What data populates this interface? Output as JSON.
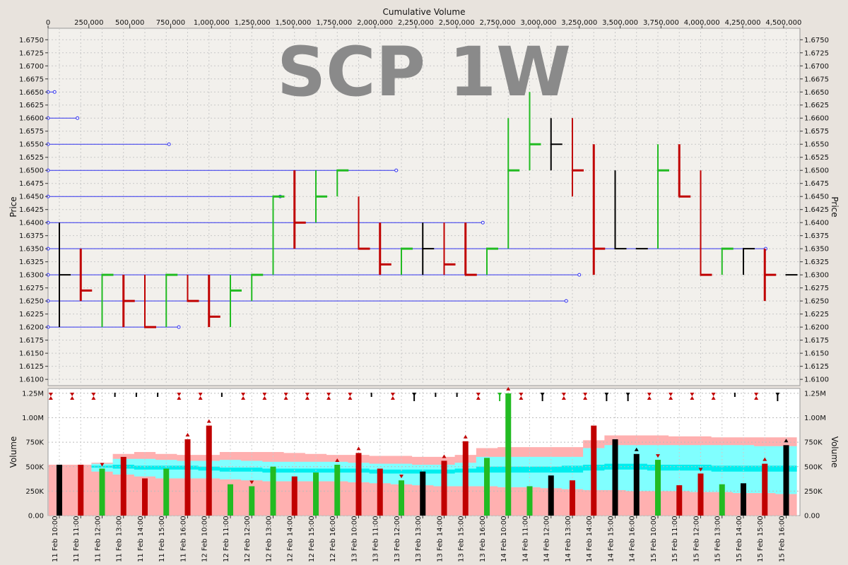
{
  "chart_data": {
    "type": "bar",
    "title": "SCP 1W",
    "top_axis": {
      "label": "Cumulative Volume",
      "range": [
        0,
        4600000
      ],
      "ticks": [
        "0",
        "250,000",
        "500,000",
        "750,000",
        "1,000,000",
        "1,250,000",
        "1,500,000",
        "1,750,000",
        "2,000,000",
        "2,250,000",
        "2,500,000",
        "2,750,000",
        "3,000,000",
        "3,250,000",
        "3,500,000",
        "3,750,000",
        "4,000,000",
        "4,250,000",
        "4,500,000"
      ]
    },
    "price_axis": {
      "label": "Price",
      "range": [
        1.6088,
        1.6772
      ],
      "ticks": [
        "1.6100",
        "1.6125",
        "1.6150",
        "1.6175",
        "1.6200",
        "1.6225",
        "1.6250",
        "1.6275",
        "1.6300",
        "1.6325",
        "1.6350",
        "1.6375",
        "1.6400",
        "1.6425",
        "1.6450",
        "1.6475",
        "1.6500",
        "1.6525",
        "1.6550",
        "1.6575",
        "1.6600",
        "1.6625",
        "1.6650",
        "1.6675",
        "1.6700",
        "1.6725",
        "1.6750"
      ]
    },
    "volume_axis": {
      "label": "Volume",
      "range": [
        0,
        1300000
      ],
      "ticks": [
        "0.00",
        "250K",
        "500K",
        "750K",
        "1.00M",
        "1.25M"
      ]
    },
    "categories": [
      "11 Feb 10:00",
      "11 Feb 11:00",
      "11 Feb 12:00",
      "11 Feb 13:00",
      "11 Feb 14:00",
      "11 Feb 15:00",
      "11 Feb 16:00",
      "12 Feb 10:00",
      "12 Feb 11:00",
      "12 Feb 12:00",
      "12 Feb 13:00",
      "12 Feb 14:00",
      "12 Feb 15:00",
      "12 Feb 16:00",
      "13 Feb 10:00",
      "13 Feb 11:00",
      "13 Feb 12:00",
      "13 Feb 13:00",
      "13 Feb 14:00",
      "13 Feb 15:00",
      "13 Feb 16:00",
      "14 Feb 10:00",
      "14 Feb 11:00",
      "14 Feb 12:00",
      "14 Feb 13:00",
      "14 Feb 14:00",
      "14 Feb 15:00",
      "14 Feb 16:00",
      "15 Feb 10:00",
      "15 Feb 11:00",
      "15 Feb 12:00",
      "15 Feb 13:00",
      "15 Feb 14:00",
      "15 Feb 15:00",
      "15 Feb 16:00"
    ],
    "colors": {
      "up": "#22bb22",
      "down": "#c00000",
      "flat": "#000000",
      "level": "#3333ee",
      "band_outer": "#ffb0b0",
      "band_mid": "#80ffff",
      "band_core": "#00eeee"
    },
    "bars": [
      {
        "high": 1.64,
        "low": 1.62,
        "open": 1.63,
        "close": 1.63,
        "dir": "flat",
        "volume": 520000
      },
      {
        "high": 1.635,
        "low": 1.625,
        "open": 1.635,
        "close": 1.627,
        "dir": "down",
        "volume": 520000
      },
      {
        "high": 1.63,
        "low": 1.62,
        "open": 1.62,
        "close": 1.63,
        "dir": "up",
        "volume": 480000
      },
      {
        "high": 1.63,
        "low": 1.62,
        "open": 1.63,
        "close": 1.625,
        "dir": "down",
        "volume": 600000
      },
      {
        "high": 1.63,
        "low": 1.62,
        "open": 1.63,
        "close": 1.62,
        "dir": "down",
        "volume": 380000
      },
      {
        "high": 1.63,
        "low": 1.62,
        "open": 1.62,
        "close": 1.63,
        "dir": "up",
        "volume": 480000
      },
      {
        "high": 1.63,
        "low": 1.625,
        "open": 1.63,
        "close": 1.625,
        "dir": "down",
        "volume": 780000
      },
      {
        "high": 1.63,
        "low": 1.62,
        "open": 1.63,
        "close": 1.622,
        "dir": "down",
        "volume": 920000
      },
      {
        "high": 1.63,
        "low": 1.62,
        "open": 1.62,
        "close": 1.627,
        "dir": "up",
        "volume": 320000
      },
      {
        "high": 1.63,
        "low": 1.625,
        "open": 1.625,
        "close": 1.63,
        "dir": "up",
        "volume": 300000
      },
      {
        "high": 1.645,
        "low": 1.63,
        "open": 1.63,
        "close": 1.645,
        "dir": "up",
        "volume": 500000
      },
      {
        "high": 1.65,
        "low": 1.635,
        "open": 1.65,
        "close": 1.64,
        "dir": "down",
        "volume": 400000
      },
      {
        "high": 1.65,
        "low": 1.64,
        "open": 1.64,
        "close": 1.645,
        "dir": "up",
        "volume": 440000
      },
      {
        "high": 1.65,
        "low": 1.645,
        "open": 1.645,
        "close": 1.65,
        "dir": "up",
        "volume": 520000
      },
      {
        "high": 1.645,
        "low": 1.635,
        "open": 1.645,
        "close": 1.635,
        "dir": "down",
        "volume": 640000
      },
      {
        "high": 1.64,
        "low": 1.63,
        "open": 1.64,
        "close": 1.632,
        "dir": "down",
        "volume": 480000
      },
      {
        "high": 1.635,
        "low": 1.63,
        "open": 1.63,
        "close": 1.635,
        "dir": "up",
        "volume": 360000
      },
      {
        "high": 1.64,
        "low": 1.63,
        "open": 1.635,
        "close": 1.635,
        "dir": "flat",
        "volume": 450000
      },
      {
        "high": 1.64,
        "low": 1.63,
        "open": 1.64,
        "close": 1.632,
        "dir": "down",
        "volume": 560000
      },
      {
        "high": 1.64,
        "low": 1.63,
        "open": 1.64,
        "close": 1.63,
        "dir": "down",
        "volume": 760000
      },
      {
        "high": 1.635,
        "low": 1.63,
        "open": 1.63,
        "close": 1.635,
        "dir": "up",
        "volume": 590000
      },
      {
        "high": 1.66,
        "low": 1.635,
        "open": 1.635,
        "close": 1.65,
        "dir": "up",
        "volume": 1250000
      },
      {
        "high": 1.665,
        "low": 1.65,
        "open": 1.65,
        "close": 1.655,
        "dir": "up",
        "volume": 300000
      },
      {
        "high": 1.66,
        "low": 1.65,
        "open": 1.655,
        "close": 1.655,
        "dir": "flat",
        "volume": 410000
      },
      {
        "high": 1.66,
        "low": 1.645,
        "open": 1.66,
        "close": 1.65,
        "dir": "down",
        "volume": 360000
      },
      {
        "high": 1.655,
        "low": 1.63,
        "open": 1.655,
        "close": 1.635,
        "dir": "down",
        "volume": 920000
      },
      {
        "high": 1.65,
        "low": 1.635,
        "open": 1.635,
        "close": 1.635,
        "dir": "flat",
        "volume": 780000
      },
      {
        "high": 1.635,
        "low": 1.635,
        "open": 1.635,
        "close": 1.635,
        "dir": "flat",
        "volume": 630000
      },
      {
        "high": 1.655,
        "low": 1.635,
        "open": 1.635,
        "close": 1.65,
        "dir": "up",
        "volume": 570000
      },
      {
        "high": 1.655,
        "low": 1.645,
        "open": 1.655,
        "close": 1.645,
        "dir": "down",
        "volume": 310000
      },
      {
        "high": 1.65,
        "low": 1.63,
        "open": 1.65,
        "close": 1.63,
        "dir": "down",
        "volume": 430000
      },
      {
        "high": 1.635,
        "low": 1.63,
        "open": 1.63,
        "close": 1.635,
        "dir": "up",
        "volume": 320000
      },
      {
        "high": 1.635,
        "low": 1.63,
        "open": 1.635,
        "close": 1.635,
        "dir": "flat",
        "volume": 330000
      },
      {
        "high": 1.635,
        "low": 1.625,
        "open": 1.635,
        "close": 1.63,
        "dir": "down",
        "volume": 530000
      },
      {
        "high": 1.63,
        "low": 1.63,
        "open": 1.63,
        "close": 1.63,
        "dir": "flat",
        "volume": 720000
      }
    ],
    "signals_top": [
      "",
      "down",
      "down",
      "updown",
      "flat",
      "flat",
      "flat",
      "updown",
      "updown",
      "flat",
      "down",
      "updown",
      "updown",
      "down",
      "down",
      "updown",
      "flat",
      "down",
      "both",
      "flat",
      "flat",
      "down",
      "up",
      "down",
      "v",
      "down",
      "down",
      "v",
      "v",
      "updown",
      "updown",
      "down",
      "down",
      "flat",
      "down",
      "v"
    ],
    "volume_markers": [
      {
        "bar": 2,
        "dir": "down"
      },
      {
        "bar": 6,
        "dir": "up"
      },
      {
        "bar": 7,
        "dir": "up"
      },
      {
        "bar": 9,
        "dir": "down"
      },
      {
        "bar": 13,
        "dir": "up"
      },
      {
        "bar": 14,
        "dir": "up"
      },
      {
        "bar": 16,
        "dir": "down"
      },
      {
        "bar": 18,
        "dir": "up"
      },
      {
        "bar": 19,
        "dir": "up"
      },
      {
        "bar": 21,
        "dir": "up"
      },
      {
        "bar": 27,
        "dir": "flat"
      },
      {
        "bar": 28,
        "dir": "down"
      },
      {
        "bar": 30,
        "dir": "down"
      },
      {
        "bar": 33,
        "dir": "up"
      },
      {
        "bar": 34,
        "dir": "flat"
      }
    ],
    "volume_bands": {
      "outer_top": [
        520000,
        520000,
        540000,
        630000,
        650000,
        630000,
        620000,
        620000,
        650000,
        650000,
        650000,
        640000,
        630000,
        620000,
        620000,
        610000,
        610000,
        600000,
        600000,
        620000,
        690000,
        700000,
        700000,
        700000,
        700000,
        770000,
        820000,
        820000,
        820000,
        810000,
        810000,
        800000,
        800000,
        800000,
        800000
      ],
      "mid_top": [
        520000,
        520000,
        530000,
        580000,
        580000,
        570000,
        560000,
        560000,
        570000,
        560000,
        550000,
        550000,
        550000,
        550000,
        540000,
        530000,
        530000,
        520000,
        520000,
        540000,
        600000,
        600000,
        600000,
        600000,
        600000,
        690000,
        720000,
        720000,
        720000,
        720000,
        720000,
        720000,
        720000,
        710000,
        710000
      ],
      "core_top": [
        520000,
        520000,
        510000,
        520000,
        510000,
        510000,
        510000,
        500000,
        490000,
        490000,
        480000,
        480000,
        480000,
        480000,
        480000,
        470000,
        470000,
        470000,
        470000,
        480000,
        500000,
        500000,
        500000,
        500000,
        510000,
        520000,
        530000,
        530000,
        520000,
        520000,
        520000,
        510000,
        510000,
        510000,
        510000
      ],
      "core_bottom": [
        520000,
        520000,
        490000,
        480000,
        470000,
        470000,
        470000,
        460000,
        450000,
        450000,
        440000,
        440000,
        440000,
        440000,
        440000,
        430000,
        430000,
        430000,
        430000,
        440000,
        440000,
        440000,
        440000,
        440000,
        440000,
        460000,
        470000,
        470000,
        460000,
        460000,
        460000,
        450000,
        450000,
        450000,
        450000
      ],
      "mid_bottom": [
        520000,
        520000,
        450000,
        420000,
        400000,
        380000,
        380000,
        380000,
        370000,
        360000,
        350000,
        350000,
        350000,
        350000,
        340000,
        330000,
        320000,
        310000,
        300000,
        300000,
        300000,
        290000,
        290000,
        280000,
        270000,
        260000,
        260000,
        250000,
        250000,
        250000,
        240000,
        240000,
        230000,
        230000,
        220000
      ]
    },
    "volume_levels": [
      {
        "price": 1.665,
        "cum_volume": 40000
      },
      {
        "price": 1.66,
        "cum_volume": 180000
      },
      {
        "price": 1.655,
        "cum_volume": 740000
      },
      {
        "price": 1.65,
        "cum_volume": 2130000
      },
      {
        "price": 1.645,
        "cum_volume": 1420000
      },
      {
        "price": 1.64,
        "cum_volume": 2660000
      },
      {
        "price": 1.635,
        "cum_volume": 4390000
      },
      {
        "price": 1.63,
        "cum_volume": 3250000
      },
      {
        "price": 1.625,
        "cum_volume": 3170000
      },
      {
        "price": 1.62,
        "cum_volume": 800000
      }
    ]
  }
}
